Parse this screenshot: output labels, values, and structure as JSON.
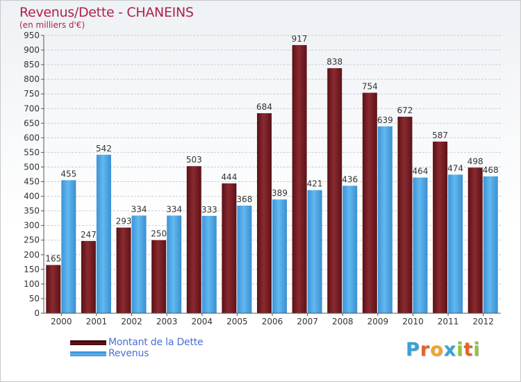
{
  "header": {
    "title": "Revenus/Dette - CHANEINS",
    "subtitle": "(en milliers d'€)"
  },
  "legend": {
    "debt_label": "Montant de la Dette",
    "revenue_label": "Revenus"
  },
  "logo": {
    "text": "Proxiti"
  },
  "colors": {
    "debt": "#7a1f24",
    "debt_dark": "#4a0d12",
    "revenue": "#56aeea",
    "revenue_dark": "#2a7fc4"
  },
  "chart_data": {
    "type": "bar",
    "title": "Revenus/Dette - CHANEINS",
    "ylabel": "(en milliers d'€)",
    "xlabel": "",
    "categories": [
      "2000",
      "2001",
      "2002",
      "2003",
      "2004",
      "2005",
      "2006",
      "2007",
      "2008",
      "2009",
      "2010",
      "2011",
      "2012"
    ],
    "series": [
      {
        "name": "Montant de la Dette",
        "values": [
          165,
          247,
          293,
          250,
          503,
          444,
          684,
          917,
          838,
          754,
          672,
          587,
          498
        ]
      },
      {
        "name": "Revenus",
        "values": [
          455,
          542,
          334,
          334,
          333,
          368,
          389,
          421,
          436,
          639,
          464,
          474,
          468
        ]
      }
    ],
    "ylim": [
      0,
      950
    ],
    "ytick_step": 50,
    "grid": true,
    "legend_position": "bottom-left"
  }
}
